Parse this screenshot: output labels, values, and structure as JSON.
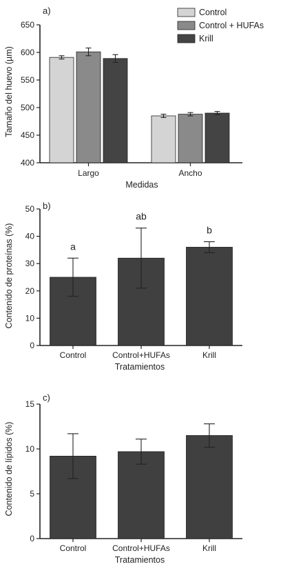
{
  "chart_data": [
    {
      "type": "bar",
      "panel_label": "a)",
      "title": "",
      "xlabel": "Medidas",
      "ylabel": "Tamaño del huevo (µm)",
      "ylim": [
        400,
        650
      ],
      "yticks": [
        400,
        450,
        500,
        550,
        600,
        650
      ],
      "categories": [
        "Largo",
        "Ancho"
      ],
      "series": [
        {
          "name": "Control",
          "color": "#d4d4d4",
          "values": [
            591,
            485
          ],
          "errors": [
            3,
            3
          ]
        },
        {
          "name": "Control + HUFAs",
          "color": "#8a8a8a",
          "values": [
            601,
            488
          ],
          "errors": [
            7,
            3
          ]
        },
        {
          "name": "Krill",
          "color": "#444444",
          "values": [
            589,
            490
          ],
          "errors": [
            7,
            3
          ]
        }
      ],
      "legend": "top-right",
      "grid": false
    },
    {
      "type": "bar",
      "panel_label": "b)",
      "title": "",
      "xlabel": "Tratamientos",
      "ylabel": "Contenido de proteínas (%)",
      "ylim": [
        0,
        50
      ],
      "yticks": [
        0,
        10,
        20,
        30,
        40,
        50
      ],
      "categories": [
        "Control",
        "Control+HUFAs",
        "Krill"
      ],
      "values": [
        25,
        32,
        36
      ],
      "errors": [
        7,
        11,
        2
      ],
      "annotations": [
        "a",
        "ab",
        "b"
      ],
      "color": "#404040",
      "grid": false
    },
    {
      "type": "bar",
      "panel_label": "c)",
      "title": "",
      "xlabel": "Tratamientos",
      "ylabel": "Contenido de lípidos (%)",
      "ylim": [
        0,
        15
      ],
      "yticks": [
        0,
        5,
        10,
        15
      ],
      "categories": [
        "Control",
        "Control+HUFAs",
        "Krill"
      ],
      "values": [
        9.2,
        9.7,
        11.5
      ],
      "errors": [
        2.5,
        1.4,
        1.3
      ],
      "color": "#404040",
      "grid": false
    }
  ]
}
